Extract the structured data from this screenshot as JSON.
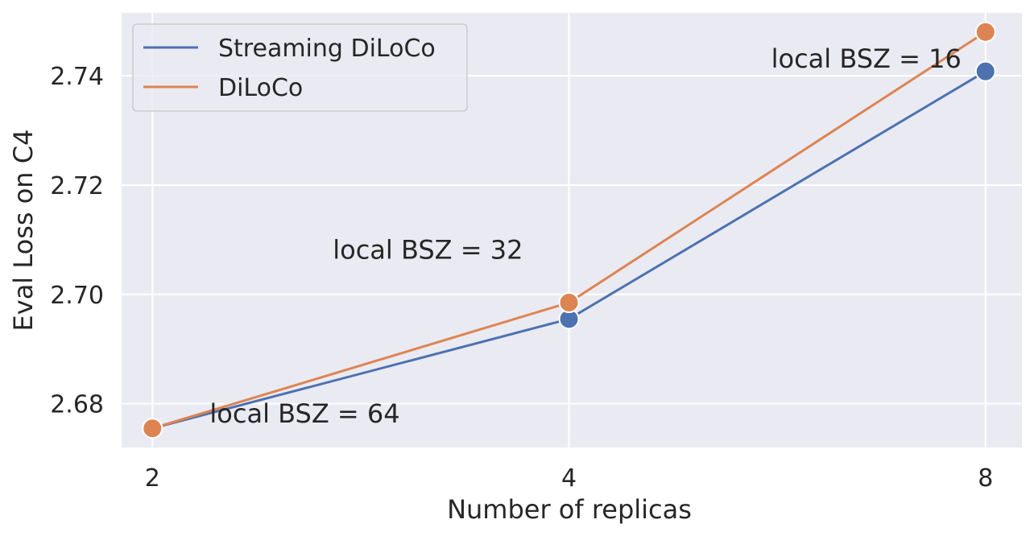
{
  "chart_data": {
    "type": "line",
    "xlabel": "Number of replicas",
    "ylabel": "Eval Loss on C4",
    "x_scale": "log2",
    "x": [
      2,
      4,
      8
    ],
    "x_tick_labels": [
      "2",
      "4",
      "8"
    ],
    "xlim": [
      1.9,
      8.5
    ],
    "ylim": [
      2.672,
      2.7515
    ],
    "y_ticks": [
      2.68,
      2.7,
      2.72,
      2.74
    ],
    "y_tick_labels": [
      "2.68",
      "2.70",
      "2.72",
      "2.74"
    ],
    "grid": true,
    "background": "#EAEAF2",
    "legend_position": "upper left",
    "series": [
      {
        "name": "Streaming DiLoCo",
        "color": "#4C72B0",
        "values": [
          2.6755,
          2.6955,
          2.7408
        ]
      },
      {
        "name": "DiLoCo",
        "color": "#DD8452",
        "values": [
          2.6755,
          2.6985,
          2.748
        ]
      }
    ],
    "annotations": [
      {
        "text": "local BSZ = 64",
        "x": 2.2,
        "y": 2.6766
      },
      {
        "text": "local BSZ = 32",
        "x": 2.7,
        "y": 2.7065
      },
      {
        "text": "local BSZ = 16",
        "x": 5.6,
        "y": 2.7415
      }
    ]
  }
}
